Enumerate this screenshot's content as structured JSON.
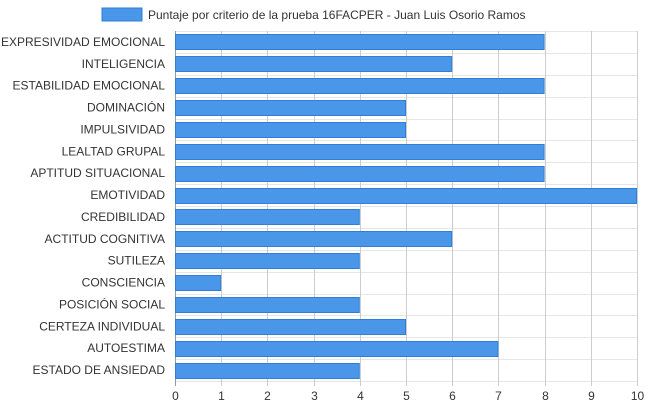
{
  "chart_data": {
    "type": "bar",
    "orientation": "horizontal",
    "categories": [
      "EXPRESIVIDAD EMOCIONAL",
      "INTELIGENCIA",
      "ESTABILIDAD EMOCIONAL",
      "DOMINACIÓN",
      "IMPULSIVIDAD",
      "LEALTAD GRUPAL",
      "APTITUD SITUACIONAL",
      "EMOTIVIDAD",
      "CREDIBILIDAD",
      "ACTITUD COGNITIVA",
      "SUTILEZA",
      "CONSCIENCIA",
      "POSICIÓN SOCIAL",
      "CERTEZA INDIVIDUAL",
      "AUTOESTIMA",
      "ESTADO DE ANSIEDAD"
    ],
    "series": [
      {
        "name": "Puntaje por criterio de la prueba 16FACPER - Juan Luis Osorio Ramos",
        "values": [
          8,
          6,
          8,
          5,
          5,
          8,
          8,
          10,
          4,
          6,
          4,
          1,
          4,
          5,
          7,
          4
        ]
      }
    ],
    "xlim": [
      0,
      10
    ],
    "xticks": [
      "0",
      "1",
      "2",
      "3",
      "4",
      "5",
      "6",
      "7",
      "8",
      "9",
      "10"
    ],
    "grid": true,
    "legend_position": "top",
    "colors": {
      "bar_fill": "#4a96e8",
      "bar_stroke": "#2f7fd9",
      "grid": "#cccccc"
    }
  }
}
